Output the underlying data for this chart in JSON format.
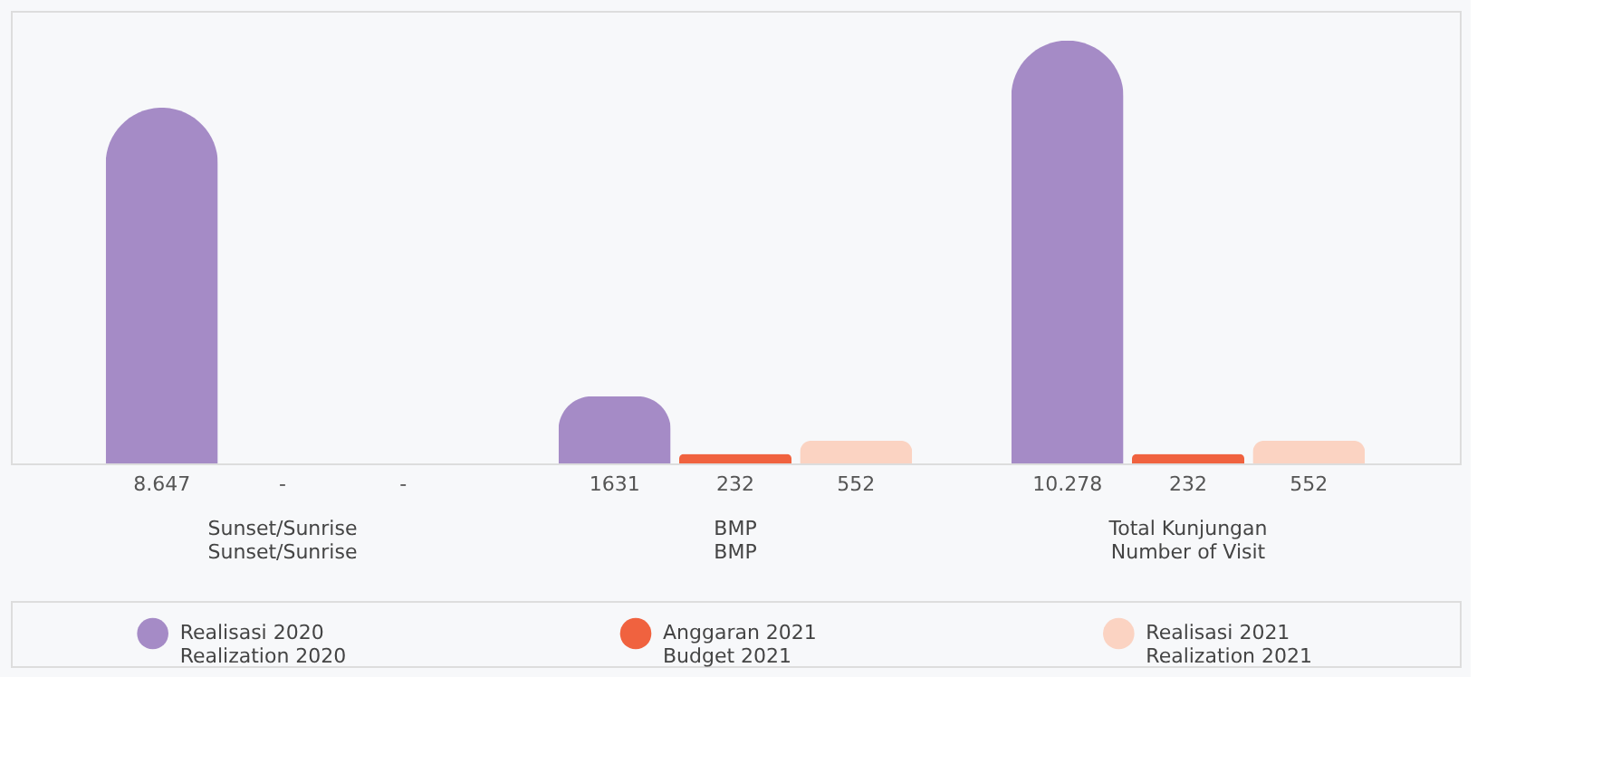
{
  "chart_data": {
    "type": "bar",
    "categories": [
      "Sunset/Sunrise\nSunset/Sunrise",
      "BMP\nBMP",
      "Total Kunjungan\nNumber of Visit"
    ],
    "series": [
      {
        "name": "Realisasi 2020\nRealization 2020",
        "color": "#a58bc6",
        "values": [
          8647,
          1631,
          10278
        ],
        "value_labels": [
          "8.647",
          "1631",
          "10.278"
        ]
      },
      {
        "name": "Anggaran 2021\nBudget 2021",
        "color": "#f0623f",
        "values": [
          null,
          232,
          232
        ],
        "value_labels": [
          "-",
          "232",
          "232"
        ]
      },
      {
        "name": "Realisasi 2021\nRealization 2021",
        "color": "#fbd3c2",
        "values": [
          null,
          552,
          552
        ],
        "value_labels": [
          "-",
          "552",
          "552"
        ]
      }
    ],
    "legend": "bottom",
    "grid": false
  }
}
